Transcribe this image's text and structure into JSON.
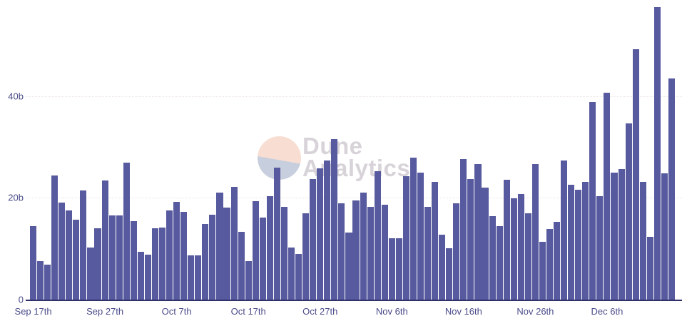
{
  "chart_data": {
    "type": "bar",
    "title": "",
    "legend_position": "none",
    "grid": "horizontal dotted at 20b and 40b",
    "ylim": [
      0,
      58.9
    ],
    "unit": "b",
    "y_ticks": [
      {
        "value": 0,
        "label": "0"
      },
      {
        "value": 20,
        "label": "20b"
      },
      {
        "value": 40,
        "label": "40b"
      }
    ],
    "x_ticks": [
      {
        "index": 0,
        "label": "Sep 17th"
      },
      {
        "index": 10,
        "label": "Sep 27th"
      },
      {
        "index": 20,
        "label": "Oct 7th"
      },
      {
        "index": 30,
        "label": "Oct 17th"
      },
      {
        "index": 40,
        "label": "Oct 27th"
      },
      {
        "index": 50,
        "label": "Nov 6th"
      },
      {
        "index": 60,
        "label": "Nov 16th"
      },
      {
        "index": 70,
        "label": "Nov 26th"
      },
      {
        "index": 80,
        "label": "Dec 6th"
      }
    ],
    "x": [
      "Sep 17",
      "Sep 18",
      "Sep 19",
      "Sep 20",
      "Sep 21",
      "Sep 22",
      "Sep 23",
      "Sep 24",
      "Sep 25",
      "Sep 26",
      "Sep 27",
      "Sep 28",
      "Sep 29",
      "Sep 30",
      "Oct 1",
      "Oct 2",
      "Oct 3",
      "Oct 4",
      "Oct 5",
      "Oct 6",
      "Oct 7",
      "Oct 8",
      "Oct 9",
      "Oct 10",
      "Oct 11",
      "Oct 12",
      "Oct 13",
      "Oct 14",
      "Oct 15",
      "Oct 16",
      "Oct 17",
      "Oct 18",
      "Oct 19",
      "Oct 20",
      "Oct 21",
      "Oct 22",
      "Oct 23",
      "Oct 24",
      "Oct 25",
      "Oct 26",
      "Oct 27",
      "Oct 28",
      "Oct 29",
      "Oct 30",
      "Oct 31",
      "Nov 1",
      "Nov 2",
      "Nov 3",
      "Nov 4",
      "Nov 5",
      "Nov 6",
      "Nov 7",
      "Nov 8",
      "Nov 9",
      "Nov 10",
      "Nov 11",
      "Nov 12",
      "Nov 13",
      "Nov 14",
      "Nov 15",
      "Nov 16",
      "Nov 17",
      "Nov 18",
      "Nov 19",
      "Nov 20",
      "Nov 21",
      "Nov 22",
      "Nov 23",
      "Nov 24",
      "Nov 25",
      "Nov 26",
      "Nov 27",
      "Nov 28",
      "Nov 29",
      "Nov 30",
      "Dec 1",
      "Dec 2",
      "Dec 3",
      "Dec 4",
      "Dec 5",
      "Dec 6",
      "Dec 7",
      "Dec 8",
      "Dec 9",
      "Dec 10",
      "Dec 11",
      "Dec 12",
      "Dec 13",
      "Dec 14",
      "Dec 15"
    ],
    "values": [
      14.4,
      7.6,
      6.9,
      24.4,
      19.1,
      17.6,
      15.7,
      21.4,
      10.2,
      14.0,
      23.4,
      16.6,
      16.5,
      27.0,
      15.5,
      9.4,
      8.8,
      14.0,
      14.2,
      17.5,
      19.2,
      17.3,
      8.7,
      8.7,
      14.8,
      16.7,
      21.1,
      18.1,
      22.1,
      13.3,
      7.6,
      19.4,
      16.1,
      20.3,
      26.0,
      18.2,
      10.2,
      9.0,
      17.0,
      23.7,
      25.8,
      27.3,
      31.6,
      18.9,
      13.2,
      19.5,
      21.1,
      18.2,
      25.3,
      18.7,
      12.1,
      12.1,
      24.3,
      27.9,
      25.0,
      18.2,
      23.1,
      12.7,
      10.1,
      19.0,
      27.6,
      23.7,
      26.7,
      22.0,
      16.4,
      14.4,
      23.6,
      19.9,
      20.8,
      17.0,
      26.7,
      11.4,
      13.9,
      15.3,
      27.3,
      22.6,
      21.6,
      23.1,
      38.8,
      20.3,
      40.7,
      24.9,
      25.6,
      34.7,
      49.2,
      23.2,
      12.3,
      57.5,
      24.8,
      43.5
    ]
  },
  "watermark": {
    "line1": "Dune",
    "line2": "Analytics",
    "logo": "dune-logo-circle",
    "circle_top_color": "#F8DED2",
    "circle_bottom_color": "#C7CEDD",
    "text_color": "#D8D3D9"
  },
  "colors": {
    "bar": "#575A9E",
    "axis_line": "#31326B",
    "axis_label": "#4A4B8A",
    "gridline": "#ECE3E3",
    "background": "#FFFFFF"
  }
}
